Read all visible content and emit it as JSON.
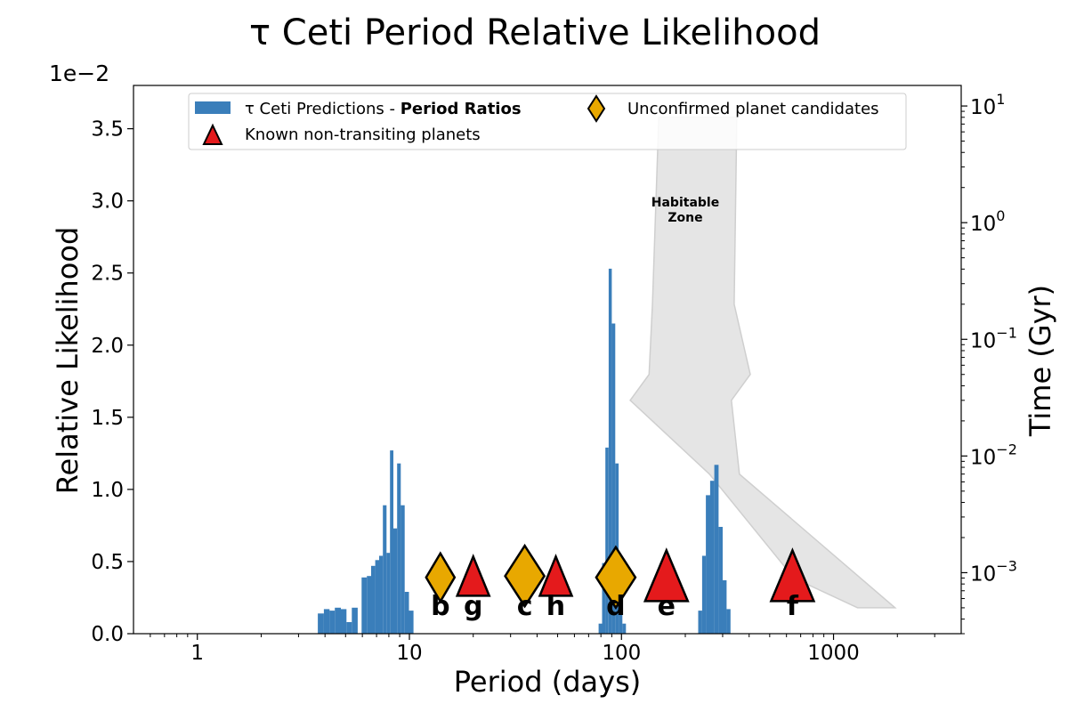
{
  "chart_data": {
    "type": "bar",
    "title": "τ Ceti Period Relative Likelihood",
    "xlabel": "Period (days)",
    "ylabel": "Relative Likelihood",
    "y2label": "Time (Gyr)",
    "y_offset_text": "1e−2",
    "xscale": "log",
    "xlim": [
      0.5,
      4000
    ],
    "ylim": [
      0,
      0.038
    ],
    "y2scale": "log",
    "y2lim": [
      0.0003,
      15
    ],
    "x_ticks": [
      {
        "value": 1,
        "label": "1"
      },
      {
        "value": 10,
        "label": "10"
      },
      {
        "value": 100,
        "label": "100"
      },
      {
        "value": 1000,
        "label": "1000"
      }
    ],
    "y_ticks": [
      {
        "value": 0.0,
        "label": "0.0"
      },
      {
        "value": 0.005,
        "label": "0.5"
      },
      {
        "value": 0.01,
        "label": "1.0"
      },
      {
        "value": 0.015,
        "label": "1.5"
      },
      {
        "value": 0.02,
        "label": "2.0"
      },
      {
        "value": 0.025,
        "label": "2.5"
      },
      {
        "value": 0.03,
        "label": "3.0"
      },
      {
        "value": 0.035,
        "label": "3.5"
      }
    ],
    "y2_ticks": [
      {
        "value": 10,
        "base": "10",
        "exp": "1"
      },
      {
        "value": 1,
        "base": "10",
        "exp": "0"
      },
      {
        "value": 0.1,
        "base": "10",
        "exp": "−1"
      },
      {
        "value": 0.01,
        "base": "10",
        "exp": "−2"
      },
      {
        "value": 0.001,
        "base": "10",
        "exp": "−3"
      }
    ],
    "series": [
      {
        "name": "τ Ceti Predictions - ",
        "name_bold": "Period Ratios",
        "color": "#3a7eba",
        "bins": [
          {
            "x0": 3.7,
            "x1": 3.95,
            "y": 0.0014
          },
          {
            "x0": 3.95,
            "x1": 4.2,
            "y": 0.0017
          },
          {
            "x0": 4.2,
            "x1": 4.45,
            "y": 0.0016
          },
          {
            "x0": 4.45,
            "x1": 4.75,
            "y": 0.0018
          },
          {
            "x0": 4.75,
            "x1": 5.05,
            "y": 0.0017
          },
          {
            "x0": 5.05,
            "x1": 5.35,
            "y": 0.0008
          },
          {
            "x0": 5.35,
            "x1": 5.7,
            "y": 0.0018
          },
          {
            "x0": 5.95,
            "x1": 6.3,
            "y": 0.0039
          },
          {
            "x0": 6.3,
            "x1": 6.6,
            "y": 0.004
          },
          {
            "x0": 6.6,
            "x1": 6.9,
            "y": 0.0047
          },
          {
            "x0": 6.9,
            "x1": 7.2,
            "y": 0.0051
          },
          {
            "x0": 7.2,
            "x1": 7.5,
            "y": 0.0054
          },
          {
            "x0": 7.5,
            "x1": 7.8,
            "y": 0.0089
          },
          {
            "x0": 7.8,
            "x1": 8.1,
            "y": 0.0056
          },
          {
            "x0": 8.1,
            "x1": 8.4,
            "y": 0.0127
          },
          {
            "x0": 8.4,
            "x1": 8.75,
            "y": 0.0073
          },
          {
            "x0": 8.75,
            "x1": 9.1,
            "y": 0.0118
          },
          {
            "x0": 9.1,
            "x1": 9.5,
            "y": 0.0089
          },
          {
            "x0": 9.5,
            "x1": 9.95,
            "y": 0.0029
          },
          {
            "x0": 9.95,
            "x1": 10.45,
            "y": 0.0016
          },
          {
            "x0": 78,
            "x1": 81,
            "y": 0.0007
          },
          {
            "x0": 81,
            "x1": 84,
            "y": 0.0049
          },
          {
            "x0": 84,
            "x1": 87,
            "y": 0.0129
          },
          {
            "x0": 87,
            "x1": 90,
            "y": 0.0253
          },
          {
            "x0": 90,
            "x1": 93.5,
            "y": 0.0215
          },
          {
            "x0": 93.5,
            "x1": 97,
            "y": 0.0118
          },
          {
            "x0": 97,
            "x1": 101,
            "y": 0.0035
          },
          {
            "x0": 101,
            "x1": 105,
            "y": 0.0007
          },
          {
            "x0": 230,
            "x1": 240,
            "y": 0.0016
          },
          {
            "x0": 240,
            "x1": 250,
            "y": 0.0054
          },
          {
            "x0": 250,
            "x1": 262,
            "y": 0.0096
          },
          {
            "x0": 262,
            "x1": 274,
            "y": 0.0106
          },
          {
            "x0": 274,
            "x1": 287,
            "y": 0.0117
          },
          {
            "x0": 287,
            "x1": 300,
            "y": 0.0074
          },
          {
            "x0": 300,
            "x1": 313,
            "y": 0.0037
          },
          {
            "x0": 313,
            "x1": 327,
            "y": 0.0017
          }
        ]
      }
    ],
    "unconfirmed": {
      "name": "Unconfirmed planet candidates",
      "color": "#e8a800",
      "points": [
        {
          "label": "b",
          "x": 14,
          "y": 0.0039,
          "big": false
        },
        {
          "label": "c",
          "x": 35,
          "y": 0.004,
          "big": true
        },
        {
          "label": "d",
          "x": 94,
          "y": 0.0039,
          "big": true
        }
      ]
    },
    "known": {
      "name": "Known non-transiting planets",
      "color": "#e41a1c",
      "points": [
        {
          "label": "g",
          "x": 20,
          "y": 0.0038,
          "big": false
        },
        {
          "label": "h",
          "x": 49,
          "y": 0.0038,
          "big": false
        },
        {
          "label": "e",
          "x": 163,
          "y": 0.0038,
          "big": true
        },
        {
          "label": "f",
          "x": 640,
          "y": 0.0038,
          "big": true
        }
      ]
    },
    "habitable_zone": {
      "label_line1": "Habitable",
      "label_line2": "Zone",
      "fill": "#e5e5e5",
      "inner_edge": [
        [
          1300,
          0.0005
        ],
        [
          650,
          0.0009
        ],
        [
          260,
          0.007
        ],
        [
          110,
          0.03
        ],
        [
          135,
          0.05
        ],
        [
          140,
          0.2
        ],
        [
          150,
          8
        ]
      ],
      "outer_edge": [
        [
          350,
          8
        ],
        [
          340,
          0.2
        ],
        [
          405,
          0.05
        ],
        [
          330,
          0.03
        ],
        [
          360,
          0.007
        ],
        [
          1950,
          0.0005
        ]
      ]
    },
    "legend_position": "top-center"
  }
}
